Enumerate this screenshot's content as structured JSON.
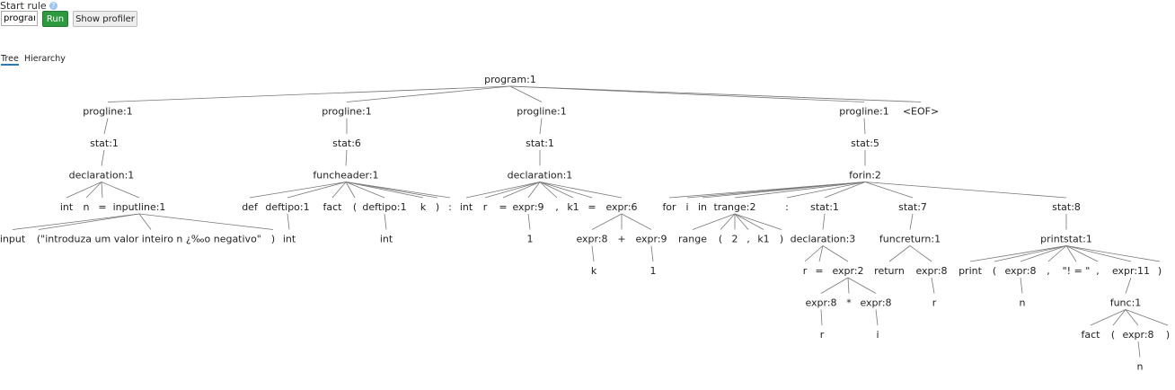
{
  "toolbar": {
    "start_rule_label": "Start rule",
    "help_icon": "question-circle-icon",
    "rule_value": "program",
    "run_label": "Run",
    "profiler_label": "Show profiler",
    "run_color": "#2e9a3f"
  },
  "tabs": [
    {
      "label": "Tree",
      "active": true
    },
    {
      "label": "Hierarchy",
      "active": false
    }
  ],
  "tree": {
    "label": "program:1",
    "children": [
      {
        "label": "progline:1",
        "children": [
          {
            "label": "stat:1",
            "children": [
              {
                "label": "declaration:1",
                "children": [
                  {
                    "label": "int"
                  },
                  {
                    "label": "n"
                  },
                  {
                    "label": "="
                  },
                  {
                    "label": "inputline:1",
                    "children": [
                      {
                        "label": "input"
                      },
                      {
                        "label": "("
                      },
                      {
                        "label": "\"introduza um valor inteiro n ¿‰o negativo\""
                      },
                      {
                        "label": ")"
                      }
                    ]
                  }
                ]
              }
            ]
          }
        ]
      },
      {
        "label": "progline:1",
        "children": [
          {
            "label": "stat:6",
            "children": [
              {
                "label": "funcheader:1",
                "children": [
                  {
                    "label": "def"
                  },
                  {
                    "label": "deftipo:1",
                    "children": [
                      {
                        "label": "int"
                      }
                    ]
                  },
                  {
                    "label": "fact"
                  },
                  {
                    "label": "("
                  },
                  {
                    "label": "deftipo:1",
                    "children": [
                      {
                        "label": "int"
                      }
                    ]
                  },
                  {
                    "label": "k"
                  },
                  {
                    "label": ")"
                  },
                  {
                    "label": ":"
                  }
                ]
              }
            ]
          }
        ]
      },
      {
        "label": "progline:1",
        "children": [
          {
            "label": "stat:1",
            "children": [
              {
                "label": "declaration:1",
                "children": [
                  {
                    "label": "int"
                  },
                  {
                    "label": "r"
                  },
                  {
                    "label": "="
                  },
                  {
                    "label": "expr:9",
                    "children": [
                      {
                        "label": "1"
                      }
                    ]
                  },
                  {
                    "label": ","
                  },
                  {
                    "label": "k1"
                  },
                  {
                    "label": "="
                  },
                  {
                    "label": "expr:6",
                    "children": [
                      {
                        "label": "expr:8",
                        "children": [
                          {
                            "label": "k"
                          }
                        ]
                      },
                      {
                        "label": "+"
                      },
                      {
                        "label": "expr:9",
                        "children": [
                          {
                            "label": "1"
                          }
                        ]
                      }
                    ]
                  }
                ]
              }
            ]
          }
        ]
      },
      {
        "label": "progline:1",
        "children": [
          {
            "label": "stat:5",
            "children": [
              {
                "label": "forin:2",
                "children": [
                  {
                    "label": "for"
                  },
                  {
                    "label": "i"
                  },
                  {
                    "label": "in"
                  },
                  {
                    "label": "trange:2",
                    "children": [
                      {
                        "label": "range"
                      },
                      {
                        "label": "("
                      },
                      {
                        "label": "2"
                      },
                      {
                        "label": ","
                      },
                      {
                        "label": "k1"
                      },
                      {
                        "label": ")"
                      }
                    ]
                  },
                  {
                    "label": ":"
                  },
                  {
                    "label": "stat:1",
                    "children": [
                      {
                        "label": "declaration:3",
                        "children": [
                          {
                            "label": "r"
                          },
                          {
                            "label": "="
                          },
                          {
                            "label": "expr:2",
                            "children": [
                              {
                                "label": "expr:8",
                                "children": [
                                  {
                                    "label": "r"
                                  }
                                ]
                              },
                              {
                                "label": "*"
                              },
                              {
                                "label": "expr:8",
                                "children": [
                                  {
                                    "label": "i"
                                  }
                                ]
                              }
                            ]
                          }
                        ]
                      }
                    ]
                  },
                  {
                    "label": "stat:7",
                    "children": [
                      {
                        "label": "funcreturn:1",
                        "children": [
                          {
                            "label": "return"
                          },
                          {
                            "label": "expr:8",
                            "children": [
                              {
                                "label": "r"
                              }
                            ]
                          }
                        ]
                      }
                    ]
                  },
                  {
                    "label": "stat:8",
                    "children": [
                      {
                        "label": "printstat:1",
                        "children": [
                          {
                            "label": "print"
                          },
                          {
                            "label": "("
                          },
                          {
                            "label": "expr:8",
                            "children": [
                              {
                                "label": "n"
                              }
                            ]
                          },
                          {
                            "label": ","
                          },
                          {
                            "label": "\"! = \""
                          },
                          {
                            "label": ","
                          },
                          {
                            "label": "expr:11",
                            "children": [
                              {
                                "label": "func:1",
                                "children": [
                                  {
                                    "label": "fact"
                                  },
                                  {
                                    "label": "("
                                  },
                                  {
                                    "label": "expr:8",
                                    "children": [
                                      {
                                        "label": "n"
                                      }
                                    ]
                                  },
                                  {
                                    "label": ")"
                                  }
                                ]
                              }
                            ]
                          },
                          {
                            "label": ")"
                          }
                        ]
                      }
                    ]
                  }
                ]
              }
            ]
          }
        ]
      },
      {
        "label": "<EOF>"
      }
    ]
  }
}
